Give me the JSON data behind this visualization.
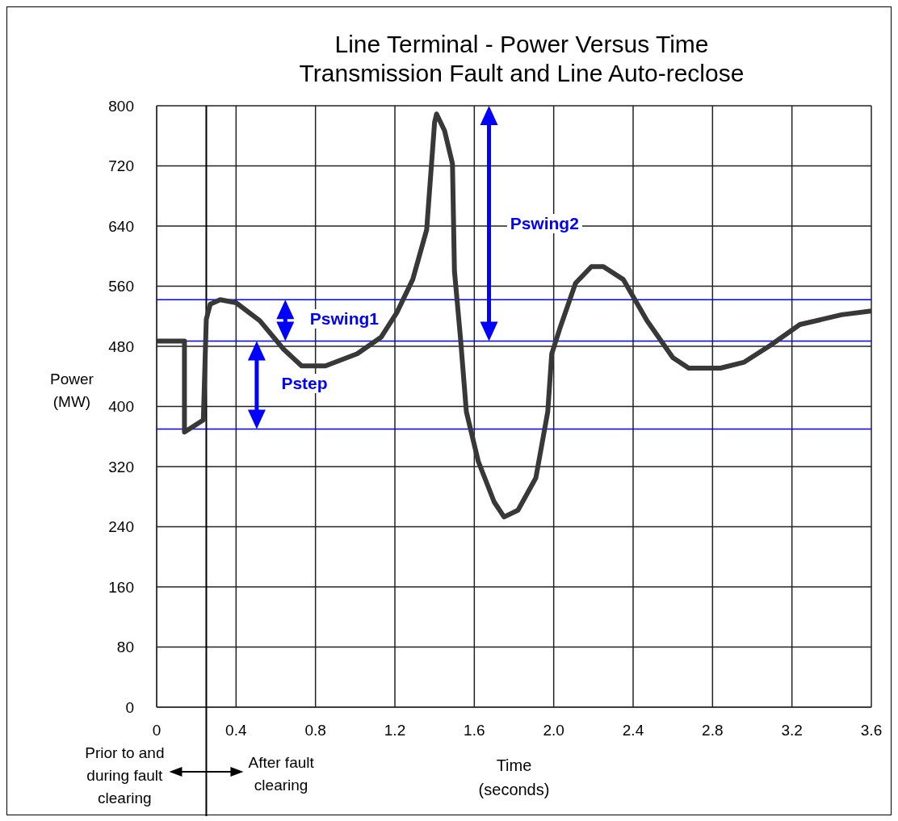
{
  "chart_data": {
    "type": "line",
    "title": "Line Terminal - Power Versus Time",
    "subtitle": "Transmission Fault and Line Auto-reclose",
    "xlabel": "Time\n(seconds)",
    "ylabel": "Power\n(MW)",
    "x": [
      0,
      0.14,
      0.14,
      0.235,
      0.25,
      0.27,
      0.32,
      0.4,
      0.52,
      0.64,
      0.73,
      0.85,
      1.01,
      1.13,
      1.21,
      1.29,
      1.36,
      1.4,
      1.41,
      1.45,
      1.49,
      1.5,
      1.53,
      1.56,
      1.62,
      1.7,
      1.75,
      1.82,
      1.91,
      1.97,
      1.99,
      2.03,
      2.11,
      2.19,
      2.25,
      2.35,
      2.47,
      2.6,
      2.68,
      2.84,
      2.96,
      3.09,
      3.24,
      3.45,
      3.6
    ],
    "series": [
      {
        "color": "#383838",
        "values": [
          487,
          487,
          366,
          382,
          516,
          536,
          542,
          538,
          514,
          476,
          454,
          454,
          470,
          492,
          525,
          569,
          635,
          778,
          789,
          767,
          723,
          580,
          492,
          393,
          327,
          273,
          253,
          262,
          305,
          393,
          470,
          503,
          564,
          586,
          586,
          569,
          514,
          465,
          451,
          451,
          459,
          481,
          509,
          522,
          527
        ]
      }
    ],
    "xlim": [
      0,
      3.6
    ],
    "xticks": [
      0,
      0.4,
      0.8,
      1.2,
      1.6,
      {
        "value": 2,
        "label": "2.0"
      },
      2.4,
      2.8,
      3.2,
      3.6
    ],
    "ylim": [
      0,
      800
    ],
    "yticks": [
      0,
      80,
      160,
      240,
      320,
      400,
      480,
      560,
      640,
      720,
      800
    ],
    "grid": true,
    "marker": "none",
    "line_style": "solid",
    "ref_lines": [
      {
        "axis": "y",
        "value": 487,
        "color": "#0000ff"
      },
      {
        "axis": "y",
        "value": 542,
        "color": "#0000ff"
      },
      {
        "axis": "y",
        "value": 370,
        "color": "#0000ff"
      },
      {
        "axis": "x",
        "value": 0.25,
        "color": "#000000"
      }
    ],
    "annotations": [
      "Pstep",
      "Pswing1",
      "Pswing2",
      "Prior to and\nduring fault\nclearing",
      "After fault\nclearing"
    ]
  }
}
